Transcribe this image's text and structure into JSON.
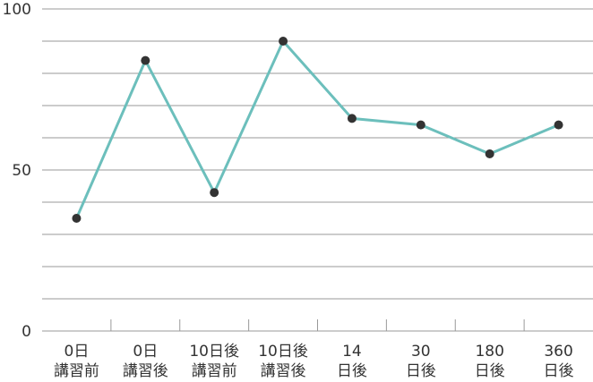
{
  "chart_data": {
    "type": "line",
    "categories": [
      [
        "0日",
        "講習前"
      ],
      [
        "0日",
        "講習後"
      ],
      [
        "10日後",
        "講習前"
      ],
      [
        "10日後",
        "講習後"
      ],
      [
        "14",
        "日後"
      ],
      [
        "30",
        "日後"
      ],
      [
        "180",
        "日後"
      ],
      [
        "360",
        "日後"
      ]
    ],
    "series": [
      {
        "color": "#6cbfbc",
        "marker_color": "#333333",
        "values": [
          35,
          84,
          43,
          90,
          66,
          64,
          55,
          64
        ]
      }
    ],
    "ylim": [
      0,
      100
    ],
    "yticks": [
      0,
      50,
      100
    ],
    "minor_yticks": [
      10,
      20,
      30,
      40,
      60,
      70,
      80,
      90
    ],
    "grid": true
  }
}
